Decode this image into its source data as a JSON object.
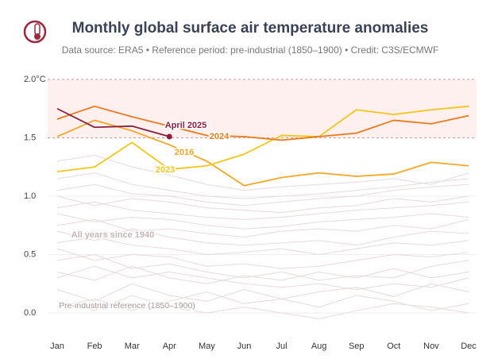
{
  "chart_data": {
    "type": "line",
    "title": "Monthly global surface air temperature anomalies",
    "subtitle": "Data source: ERA5 • Reference period: pre-industrial (1850–1900) • Credit: C3S/ECMWF",
    "categories": [
      "Jan",
      "Feb",
      "Mar",
      "Apr",
      "May",
      "Jun",
      "Jul",
      "Aug",
      "Sep",
      "Oct",
      "Nov",
      "Dec"
    ],
    "ylim": [
      -0.1,
      2.0
    ],
    "yticks": [
      {
        "value": 0,
        "label": "0.0"
      },
      0.5,
      {
        "value": 1,
        "label": "1.0"
      },
      1.5,
      {
        "value": 2,
        "label": "2.0°C"
      }
    ],
    "band": [
      1.5,
      2.0
    ],
    "band_color": "#fdf0ee",
    "background_color": "#e6dada",
    "background_series": [
      {
        "values": [
          0.05,
          0.12,
          0.02,
          0.1,
          0.18,
          0.08,
          0.12,
          0.05,
          0.15,
          0.1,
          0.02,
          0.08
        ]
      },
      {
        "values": [
          0.2,
          0.1,
          0.25,
          0.15,
          0.1,
          0.2,
          0.12,
          0.18,
          0.22,
          0.14,
          0.25,
          0.18
        ]
      },
      {
        "values": [
          0.35,
          0.28,
          0.4,
          0.3,
          0.25,
          0.32,
          0.28,
          0.35,
          0.3,
          0.38,
          0.3,
          0.35
        ]
      },
      {
        "values": [
          0.45,
          0.5,
          0.38,
          0.42,
          0.35,
          0.3,
          0.35,
          0.28,
          0.32,
          0.3,
          0.4,
          0.45
        ]
      },
      {
        "values": [
          0.55,
          0.45,
          0.5,
          0.48,
          0.4,
          0.42,
          0.38,
          0.4,
          0.45,
          0.5,
          0.48,
          0.52
        ]
      },
      {
        "values": [
          0.6,
          0.65,
          0.58,
          0.55,
          0.5,
          0.52,
          0.55,
          0.5,
          0.55,
          0.6,
          0.58,
          0.62
        ]
      },
      {
        "values": [
          0.7,
          0.62,
          0.72,
          0.65,
          0.6,
          0.58,
          0.6,
          0.62,
          0.58,
          0.65,
          0.7,
          0.68
        ]
      },
      {
        "values": [
          0.75,
          0.8,
          0.7,
          0.72,
          0.68,
          0.65,
          0.7,
          0.72,
          0.7,
          0.75,
          0.72,
          0.8
        ]
      },
      {
        "values": [
          0.85,
          0.78,
          0.82,
          0.8,
          0.75,
          0.72,
          0.74,
          0.78,
          0.8,
          0.82,
          0.85,
          0.82
        ]
      },
      {
        "values": [
          0.9,
          0.95,
          0.88,
          0.85,
          0.82,
          0.8,
          0.82,
          0.85,
          0.88,
          0.9,
          0.92,
          0.95
        ]
      },
      {
        "values": [
          1.0,
          0.92,
          0.98,
          0.95,
          0.9,
          0.88,
          0.86,
          0.9,
          0.92,
          0.98,
          0.95,
          1.0
        ]
      },
      {
        "values": [
          1.05,
          1.1,
          1.02,
          1.0,
          0.95,
          0.92,
          0.95,
          0.98,
          1.0,
          1.05,
          1.08,
          1.1
        ]
      },
      {
        "values": [
          1.15,
          1.2,
          1.1,
          1.05,
          1.0,
          0.98,
          1.0,
          1.02,
          1.05,
          1.08,
          1.12,
          1.15
        ]
      },
      {
        "values": [
          1.3,
          1.35,
          1.25,
          1.18,
          1.1,
          1.05,
          1.08,
          1.1,
          1.12,
          1.15,
          1.1,
          1.2
        ]
      },
      {
        "values": [
          0.1,
          0.02,
          0.15,
          0.05,
          0.0,
          0.05,
          0.0,
          -0.05,
          0.02,
          0.08,
          0.05,
          0.0
        ]
      },
      {
        "values": [
          0.3,
          0.4,
          0.3,
          0.35,
          0.3,
          0.25,
          0.22,
          0.25,
          0.2,
          0.25,
          0.22,
          0.3
        ]
      }
    ],
    "series": [
      {
        "name": "2016",
        "color": "#f5a623",
        "values": [
          1.51,
          1.65,
          1.56,
          1.44,
          1.3,
          1.09,
          1.16,
          1.2,
          1.17,
          1.19,
          1.29,
          1.26
        ]
      },
      {
        "name": "2023",
        "color": "#f4c619",
        "values": [
          1.21,
          1.25,
          1.46,
          1.23,
          1.26,
          1.36,
          1.52,
          1.51,
          1.74,
          1.7,
          1.74,
          1.77
        ]
      },
      {
        "name": "2024",
        "color": "#ec7a1c",
        "values": [
          1.66,
          1.77,
          1.68,
          1.6,
          1.52,
          1.51,
          1.48,
          1.51,
          1.54,
          1.65,
          1.62,
          1.69
        ]
      },
      {
        "name": "April 2025",
        "color": "#8c1f3f",
        "values": [
          1.75,
          1.59,
          1.6,
          1.51,
          null,
          null,
          null,
          null,
          null,
          null,
          null,
          null
        ]
      }
    ],
    "annotations": [
      "All years since 1940",
      "Pre-industrial reference (1850–1900)"
    ]
  }
}
